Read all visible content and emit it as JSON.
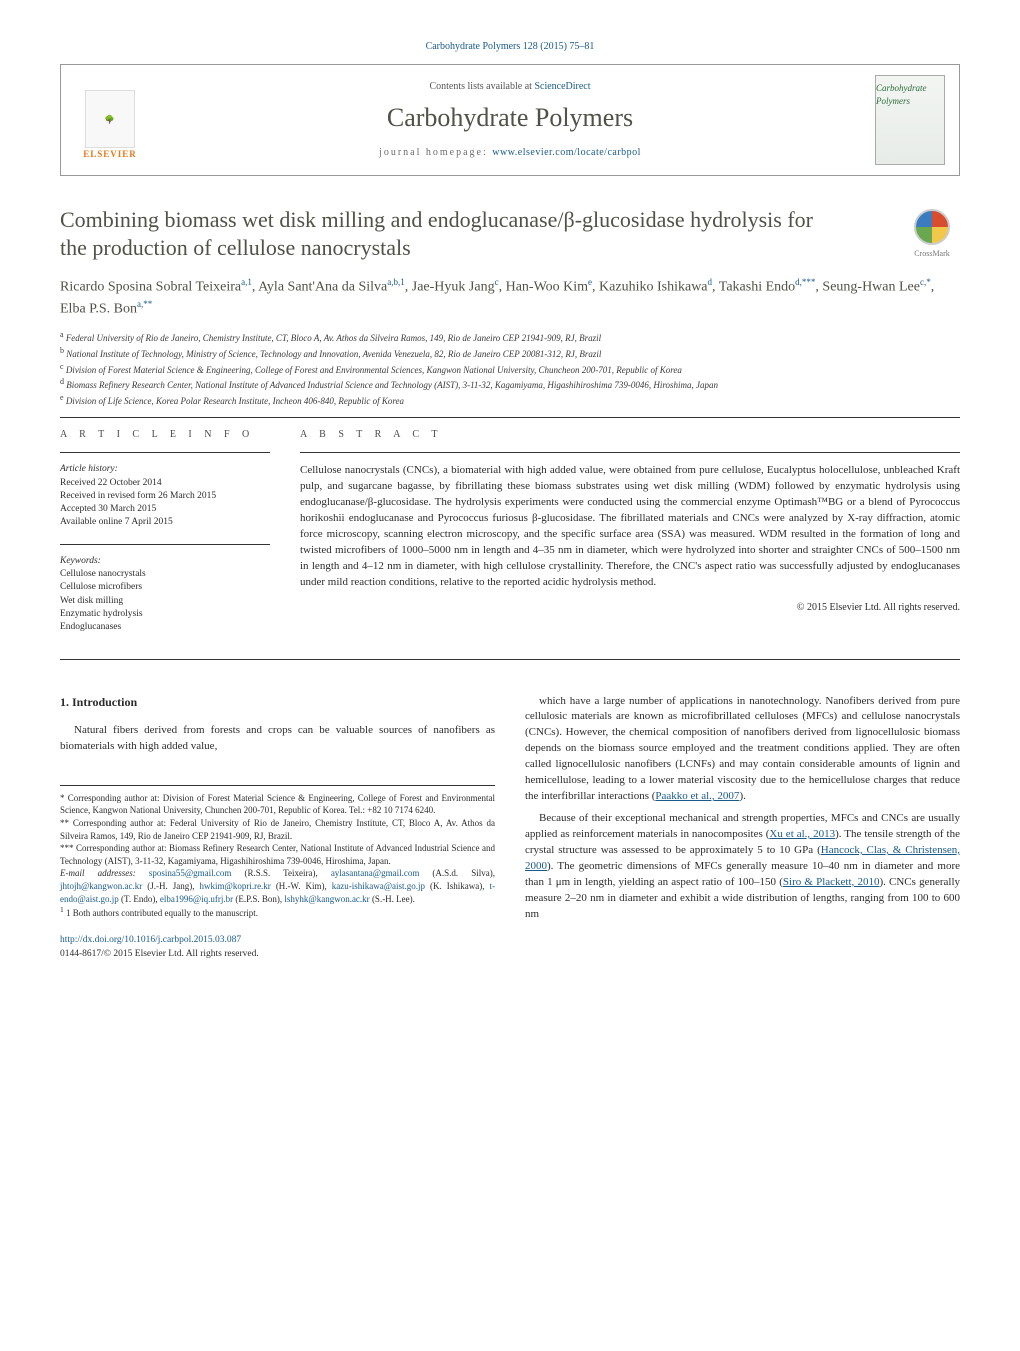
{
  "journal_ref": "Carbohydrate Polymers 128 (2015) 75–81",
  "header": {
    "contents_prefix": "Contents lists available at ",
    "contents_link_text": "ScienceDirect",
    "journal_name": "Carbohydrate Polymers",
    "homepage_prefix": "journal homepage: ",
    "homepage_link_text": "www.elsevier.com/locate/carbpol",
    "publisher_logo_text": "ELSEVIER",
    "cover_title": "Carbohydrate Polymers"
  },
  "crossmark_label": "CrossMark",
  "title": "Combining biomass wet disk milling and endoglucanase/β-glucosidase hydrolysis for the production of cellulose nanocrystals",
  "authors_html": "Ricardo Sposina Sobral Teixeira<sup>a,1</sup>, Ayla Sant'Ana da Silva<sup>a,b,1</sup>, Jae-Hyuk Jang<sup>c</sup>, Han-Woo Kim<sup>e</sup>, Kazuhiko Ishikawa<sup>d</sup>, Takashi Endo<sup>d,***</sup>, Seung-Hwan Lee<sup>c,*</sup>, Elba P.S. Bon<sup>a,**</sup>",
  "affiliations": [
    "a Federal University of Rio de Janeiro, Chemistry Institute, CT, Bloco A, Av. Athos da Silveira Ramos, 149, Rio de Janeiro CEP 21941-909, RJ, Brazil",
    "b National Institute of Technology, Ministry of Science, Technology and Innovation, Avenida Venezuela, 82, Rio de Janeiro CEP 20081-312, RJ, Brazil",
    "c Division of Forest Material Science & Engineering, College of Forest and Environmental Sciences, Kangwon National University, Chuncheon 200-701, Republic of Korea",
    "d Biomass Refinery Research Center, National Institute of Advanced Industrial Science and Technology (AIST), 3-11-32, Kagamiyama, Higashihiroshima 739-0046, Hiroshima, Japan",
    "e Division of Life Science, Korea Polar Research Institute, Incheon 406-840, Republic of Korea"
  ],
  "article_info": {
    "section_head": "A R T I C L E  I N F O",
    "history_label": "Article history:",
    "history": [
      "Received 22 October 2014",
      "Received in revised form 26 March 2015",
      "Accepted 30 March 2015",
      "Available online 7 April 2015"
    ],
    "keywords_label": "Keywords:",
    "keywords": [
      "Cellulose nanocrystals",
      "Cellulose microfibers",
      "Wet disk milling",
      "Enzymatic hydrolysis",
      "Endoglucanases"
    ]
  },
  "abstract": {
    "section_head": "A B S T R A C T",
    "text": "Cellulose nanocrystals (CNCs), a biomaterial with high added value, were obtained from pure cellulose, Eucalyptus holocellulose, unbleached Kraft pulp, and sugarcane bagasse, by fibrillating these biomass substrates using wet disk milling (WDM) followed by enzymatic hydrolysis using endoglucanase/β-glucosidase. The hydrolysis experiments were conducted using the commercial enzyme Optimash™BG or a blend of Pyrococcus horikoshii endoglucanase and Pyrococcus furiosus β-glucosidase. The fibrillated materials and CNCs were analyzed by X-ray diffraction, atomic force microscopy, scanning electron microscopy, and the specific surface area (SSA) was measured. WDM resulted in the formation of long and twisted microfibers of 1000–5000 nm in length and 4–35 nm in diameter, which were hydrolyzed into shorter and straighter CNCs of 500–1500 nm in length and 4–12 nm in diameter, with high cellulose crystallinity. Therefore, the CNC's aspect ratio was successfully adjusted by endoglucanases under mild reaction conditions, relative to the reported acidic hydrolysis method.",
    "copyright": "© 2015 Elsevier Ltd. All rights reserved."
  },
  "intro": {
    "heading": "1. Introduction",
    "left_para": "Natural fibers derived from forests and crops can be valuable sources of nanofibers as biomaterials with high added value,",
    "right_para_1": "which have a large number of applications in nanotechnology. Nanofibers derived from pure cellulosic materials are known as microfibrillated celluloses (MFCs) and cellulose nanocrystals (CNCs). However, the chemical composition of nanofibers derived from lignocellulosic biomass depends on the biomass source employed and the treatment conditions applied. They are often called lignocellulosic nanofibers (LCNFs) and may contain considerable amounts of lignin and hemicellulose, leading to a lower material viscosity due to the hemicellulose charges that reduce the interfibrillar interactions (",
    "right_ref_1": "Paakko et al., 2007",
    "right_para_1b": ").",
    "right_para_2a": "Because of their exceptional mechanical and strength properties, MFCs and CNCs are usually applied as reinforcement materials in nanocomposites (",
    "right_ref_2": "Xu et al., 2013",
    "right_para_2b": "). The tensile strength of the crystal structure was assessed to be approximately 5 to 10 GPa (",
    "right_ref_3": "Hancock, Clas, & Christensen, 2000",
    "right_para_2c": "). The geometric dimensions of MFCs generally measure 10–40 nm in diameter and more than 1 μm in length, yielding an aspect ratio of 100–150 (",
    "right_ref_4": "Siro & Plackett, 2010",
    "right_para_2d": "). CNCs generally measure 2–20 nm in diameter and exhibit a wide distribution of lengths, ranging from 100 to 600 nm"
  },
  "footnotes": {
    "corr1": "* Corresponding author at: Division of Forest Material Science & Engineering, College of Forest and Environmental Science, Kangwon National University, Chunchen 200-701, Republic of Korea. Tel.: +82 10 7174 6240.",
    "corr2": "** Corresponding author at: Federal University of Rio de Janeiro, Chemistry Institute, CT, Bloco A, Av. Athos da Silveira Ramos, 149, Rio de Janeiro CEP 21941-909, RJ, Brazil.",
    "corr3": "*** Corresponding author at: Biomass Refinery Research Center, National Institute of Advanced Industrial Science and Technology (AIST), 3-11-32, Kagamiyama, Higashihiroshima 739-0046, Hiroshima, Japan.",
    "email_label": "E-mail addresses: ",
    "emails": [
      {
        "addr": "sposina55@gmail.com",
        "who": " (R.S.S. Teixeira), "
      },
      {
        "addr": "aylasantana@gmail.com",
        "who": " (A.S.d. Silva), "
      },
      {
        "addr": "jhtojh@kangwon.ac.kr",
        "who": " (J.-H. Jang), "
      },
      {
        "addr": "hwkim@kopri.re.kr",
        "who": " (H.-W. Kim), "
      },
      {
        "addr": "kazu-ishikawa@aist.go.jp",
        "who": " (K. Ishikawa), "
      },
      {
        "addr": "t-endo@aist.go.jp",
        "who": " (T. Endo), "
      },
      {
        "addr": "elba1996@iq.ufrj.br",
        "who": " (E.P.S. Bon), "
      },
      {
        "addr": "lshyhk@kangwon.ac.kr",
        "who": " (S.-H. Lee)."
      }
    ],
    "note1": "1 Both authors contributed equally to the manuscript."
  },
  "doi": {
    "link": "http://dx.doi.org/10.1016/j.carbpol.2015.03.087",
    "issn_line": "0144-8617/© 2015 Elsevier Ltd. All rights reserved."
  },
  "colors": {
    "link": "#1a5a8a",
    "heading": "#525147",
    "publisher": "#e67817"
  }
}
